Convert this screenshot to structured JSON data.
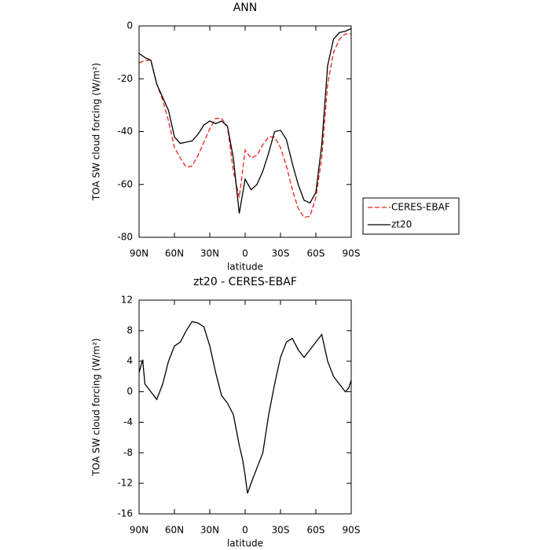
{
  "chart_data": [
    {
      "type": "line",
      "title": "ANN",
      "xlabel": "latitude",
      "ylabel": "TOA SW cloud forcing (W/m²)",
      "x": [
        90,
        85,
        80,
        75,
        70,
        65,
        60,
        55,
        50,
        45,
        40,
        35,
        30,
        25,
        20,
        15,
        10,
        5,
        0,
        -5,
        -10,
        -15,
        -20,
        -25,
        -30,
        -35,
        -40,
        -45,
        -50,
        -55,
        -60,
        -65,
        -70,
        -75,
        -80,
        -85,
        -90
      ],
      "series": [
        {
          "name": "CERES-EBAF",
          "color": "#e8231e",
          "style": "dashed",
          "values": [
            -14,
            -13,
            -13,
            -22,
            -28,
            -36,
            -46,
            -50,
            -53.5,
            -53,
            -49,
            -44,
            -39,
            -35,
            -35,
            -38,
            -55,
            -65,
            -47,
            -50,
            -49,
            -45,
            -42,
            -42,
            -46,
            -53,
            -62,
            -69,
            -72.5,
            -72,
            -65,
            -50,
            -22,
            -10,
            -5,
            -3,
            -3
          ]
        },
        {
          "name": "zt20",
          "color": "#000000",
          "style": "solid",
          "values": [
            -10.4,
            -12,
            -13,
            -22,
            -27,
            -32,
            -42,
            -44.5,
            -44,
            -43.5,
            -41,
            -37.5,
            -36,
            -37,
            -36,
            -38,
            -50,
            -71,
            -58,
            -62,
            -60,
            -55,
            -48,
            -40,
            -39.5,
            -43,
            -52,
            -60,
            -66,
            -67,
            -63,
            -45,
            -15,
            -5,
            -2.5,
            -2,
            -1
          ]
        }
      ],
      "xlim": [
        90,
        -90
      ],
      "xticks": [
        {
          "value": 90,
          "label": "90N"
        },
        {
          "value": 60,
          "label": "60N"
        },
        {
          "value": 30,
          "label": "30N"
        },
        0,
        {
          "value": -30,
          "label": "30S"
        },
        {
          "value": -60,
          "label": "60S"
        },
        {
          "value": -90,
          "label": "90S"
        }
      ],
      "ylim": [
        -80,
        0
      ],
      "yticks": [
        0,
        -20,
        -40,
        -60,
        -80
      ],
      "legend": "right"
    },
    {
      "type": "line",
      "title": "zt20 - CERES-EBAF",
      "xlabel": "latitude",
      "ylabel": "TOA SW cloud forcing (W/m²)",
      "x": [
        90,
        87,
        85,
        80,
        75,
        70,
        65,
        60,
        55,
        50,
        45,
        40,
        35,
        30,
        25,
        20,
        15,
        10,
        5,
        2,
        0,
        -2,
        -5,
        -10,
        -15,
        -20,
        -25,
        -30,
        -35,
        -40,
        -45,
        -50,
        -55,
        -60,
        -65,
        -70,
        -75,
        -80,
        -85,
        -88,
        -90
      ],
      "values": [
        2.5,
        4.2,
        1,
        0,
        -1,
        1,
        4,
        6,
        6.5,
        8,
        9.2,
        9,
        8.5,
        6,
        2.5,
        -0.5,
        -1.5,
        -3,
        -7,
        -9,
        -11,
        -13.3,
        -12,
        -10,
        -8,
        -3,
        1,
        4.5,
        6.5,
        7,
        5.5,
        4.5,
        5.5,
        6.5,
        7.5,
        4,
        2,
        1,
        0,
        0.5,
        1.5
      ],
      "color": "#000000",
      "xlim": [
        90,
        -90
      ],
      "xticks": [
        {
          "value": 90,
          "label": "90N"
        },
        {
          "value": 60,
          "label": "60N"
        },
        {
          "value": 30,
          "label": "30N"
        },
        0,
        {
          "value": -30,
          "label": "30S"
        },
        {
          "value": -60,
          "label": "60S"
        },
        {
          "value": -90,
          "label": "90S"
        }
      ],
      "ylim": [
        -16,
        12
      ],
      "yticks": [
        12,
        8,
        4,
        0,
        -4,
        -8,
        -12,
        -16
      ]
    }
  ]
}
